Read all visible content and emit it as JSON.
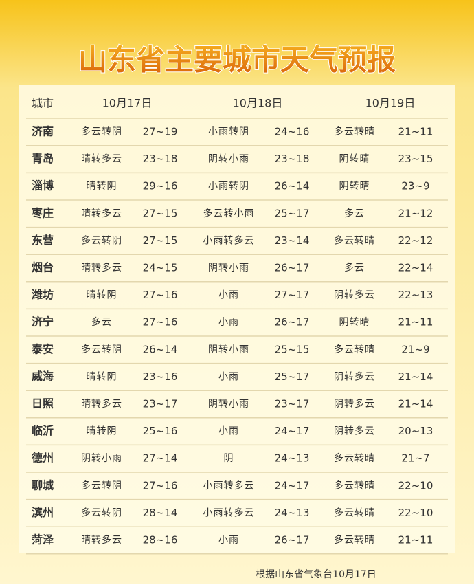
{
  "title": "山东省主要城市天气预报",
  "table": {
    "header": [
      "城市",
      "10月17日",
      "10月18日",
      "10月19日"
    ],
    "rows": [
      [
        "济南",
        "多云转阴",
        "27~19",
        "小雨转阴",
        "24~16",
        "多云转晴",
        "21~11"
      ],
      [
        "青岛",
        "晴转多云",
        "23~18",
        "阴转小雨",
        "23~18",
        "阴转晴",
        "23~15"
      ],
      [
        "淄博",
        "晴转阴",
        "29~16",
        "小雨转阴",
        "26~14",
        "阴转晴",
        "23~9"
      ],
      [
        "枣庄",
        "晴转多云",
        "27~15",
        "多云转小雨",
        "25~17",
        "多云",
        "21~12"
      ],
      [
        "东营",
        "多云转阴",
        "27~15",
        "小雨转多云",
        "23~14",
        "多云转晴",
        "22~12"
      ],
      [
        "烟台",
        "晴转多云",
        "24~15",
        "阴转小雨",
        "26~17",
        "多云",
        "22~14"
      ],
      [
        "潍坊",
        "晴转阴",
        "27~16",
        "小雨",
        "27~17",
        "阴转多云",
        "22~13"
      ],
      [
        "济宁",
        "多云",
        "27~16",
        "小雨",
        "26~17",
        "阴转晴",
        "21~11"
      ],
      [
        "泰安",
        "多云转阴",
        "26~14",
        "阴转小雨",
        "25~15",
        "多云转晴",
        "21~9"
      ],
      [
        "威海",
        "晴转阴",
        "23~16",
        "小雨",
        "25~17",
        "阴转多云",
        "21~14"
      ],
      [
        "日照",
        "晴转多云",
        "23~17",
        "阴转小雨",
        "23~17",
        "阴转多云",
        "21~14"
      ],
      [
        "临沂",
        "晴转阴",
        "25~16",
        "小雨",
        "24~17",
        "阴转多云",
        "20~13"
      ],
      [
        "德州",
        "阴转小雨",
        "27~14",
        "阴",
        "24~13",
        "多云转晴",
        "21~7"
      ],
      [
        "聊城",
        "多云转阴",
        "27~16",
        "小雨转多云",
        "24~17",
        "多云转晴",
        "22~10"
      ],
      [
        "滨州",
        "多云转阴",
        "28~14",
        "小雨转多云",
        "24~13",
        "多云转晴",
        "22~10"
      ],
      [
        "菏泽",
        "晴转多云",
        "28~16",
        "小雨",
        "26~17",
        "多云转晴",
        "21~11"
      ]
    ]
  },
  "footer": "根据山东省气象台10月17日"
}
